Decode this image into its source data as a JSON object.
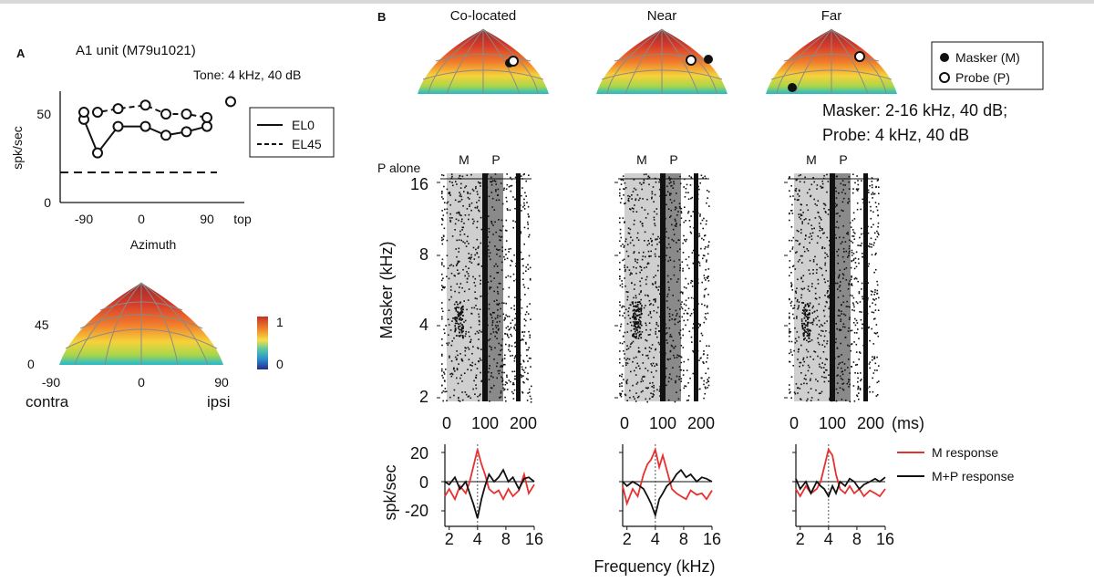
{
  "panelA": {
    "letter": "A",
    "title": "A1 unit (M79u1021)",
    "subtitle": "Tone: 4 kHz, 40 dB",
    "ylabel": "spk/sec",
    "xlabel": "Azimuth",
    "xticks": [
      "-90",
      "0",
      "90",
      "top"
    ],
    "yticks": [
      "0",
      "50"
    ],
    "legend": [
      "EL0",
      "EL45"
    ],
    "map": {
      "el_label": "45",
      "el_zero": "0",
      "az_labels": [
        "-90",
        "0",
        "90"
      ],
      "side_left": "contra",
      "side_right": "ipsi",
      "colorbar_ticks": [
        "1",
        "0"
      ]
    }
  },
  "panelB": {
    "letter": "B",
    "conditions": [
      "Co-located",
      "Near",
      "Far"
    ],
    "legend": {
      "masker": "Masker (M)",
      "probe": "Probe (P)"
    },
    "stimulus_line1": "Masker: 2-16 kHz, 40 dB;",
    "stimulus_line2": "Probe: 4 kHz, 40 dB",
    "p_alone_label": "P alone",
    "m_marker": "M",
    "p_marker": "P",
    "raster_ylabel": "Masker (kHz)",
    "raster_yticks": [
      "16",
      "8",
      "4",
      "2"
    ],
    "raster_xticks": [
      "0",
      "100",
      "200"
    ],
    "raster_xunit": "(ms)",
    "diff_ylabel": "spk/sec",
    "diff_yticks": [
      "20",
      "0",
      "-20"
    ],
    "diff_xticks": [
      "2",
      "4",
      "8",
      "16"
    ],
    "diff_xlabel": "Frequency (kHz)",
    "diff_legend": [
      "M  response",
      "M+P response"
    ]
  },
  "colors": {
    "m_response": "#e8312f",
    "mp_response": "#111111",
    "raster_shade_light": "#cfcfcf",
    "raster_shade_dark": "#8a8a8a",
    "map_peak": "#c8302a",
    "map_edge": "#1fb3cf"
  },
  "chart_data": [
    {
      "type": "line",
      "title": "A1 unit (M79u1021)",
      "xlabel": "Azimuth",
      "ylabel": "spk/sec",
      "ylim": [
        0,
        60
      ],
      "x": [
        -90,
        -70,
        -40,
        0,
        30,
        60,
        90,
        120
      ],
      "series": [
        {
          "name": "EL0",
          "values": [
            47,
            28,
            43,
            43,
            38,
            40,
            43,
            null
          ]
        },
        {
          "name": "EL45",
          "values": [
            51,
            51,
            53,
            55,
            50,
            50,
            48,
            57
          ]
        }
      ],
      "reference_line": 17
    },
    {
      "type": "line",
      "title": "Co-located",
      "xlabel": "Frequency (kHz)",
      "ylabel": "spk/sec",
      "xscale": "log2",
      "ylim": [
        -30,
        30
      ],
      "x": [
        1.8,
        2.0,
        2.3,
        2.6,
        3.0,
        3.3,
        3.6,
        4.0,
        4.4,
        4.8,
        5.3,
        6.0,
        6.7,
        7.5,
        8.5,
        9.5,
        11,
        12.5,
        14,
        16
      ],
      "series": [
        {
          "name": "M  response",
          "values": [
            -10,
            -5,
            -12,
            -3,
            -8,
            0,
            10,
            22,
            12,
            5,
            -5,
            -8,
            -6,
            -12,
            -5,
            -10,
            -6,
            5,
            -8,
            -2
          ]
        },
        {
          "name": "M+P response",
          "values": [
            0,
            -2,
            3,
            -5,
            0,
            -8,
            -15,
            -25,
            -12,
            -3,
            5,
            0,
            3,
            8,
            0,
            3,
            -5,
            2,
            3,
            0
          ]
        }
      ]
    },
    {
      "type": "line",
      "title": "Near",
      "xlabel": "Frequency (kHz)",
      "ylabel": "spk/sec",
      "xscale": "log2",
      "ylim": [
        -30,
        30
      ],
      "x": [
        1.8,
        2.0,
        2.3,
        2.6,
        3.0,
        3.3,
        3.6,
        4.0,
        4.4,
        4.8,
        5.3,
        6.0,
        6.7,
        7.5,
        8.5,
        9.5,
        11,
        12.5,
        14,
        16
      ],
      "series": [
        {
          "name": "M  response",
          "values": [
            -3,
            -15,
            -5,
            -10,
            5,
            12,
            15,
            22,
            10,
            18,
            8,
            -5,
            -8,
            -10,
            -12,
            -6,
            -9,
            -8,
            -12,
            -6
          ]
        },
        {
          "name": "M+P response",
          "values": [
            0,
            -3,
            0,
            -2,
            -5,
            -10,
            -15,
            -23,
            -12,
            -8,
            -3,
            0,
            5,
            8,
            3,
            5,
            0,
            3,
            2,
            0
          ]
        }
      ]
    },
    {
      "type": "line",
      "title": "Far",
      "xlabel": "Frequency (kHz)",
      "ylabel": "spk/sec",
      "xscale": "log2",
      "ylim": [
        -30,
        30
      ],
      "x": [
        1.8,
        2.0,
        2.3,
        2.6,
        3.0,
        3.3,
        3.6,
        4.0,
        4.4,
        4.8,
        5.3,
        6.0,
        6.7,
        7.5,
        8.5,
        9.5,
        11,
        12.5,
        14,
        16
      ],
      "series": [
        {
          "name": "M  response",
          "values": [
            -5,
            -10,
            -3,
            -8,
            -5,
            0,
            10,
            22,
            18,
            5,
            -5,
            -8,
            -3,
            -8,
            -5,
            -10,
            -6,
            -8,
            -10,
            -5
          ]
        },
        {
          "name": "M+P response",
          "values": [
            2,
            -5,
            0,
            -8,
            0,
            -3,
            -5,
            -10,
            -3,
            -8,
            0,
            -3,
            2,
            0,
            -5,
            -2,
            0,
            2,
            0,
            3
          ]
        }
      ]
    }
  ]
}
